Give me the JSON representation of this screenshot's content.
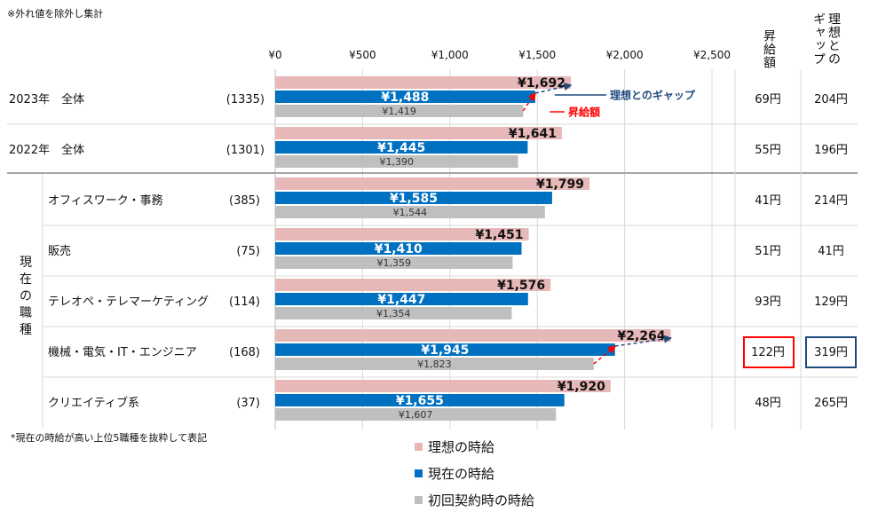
{
  "notes": {
    "top": "※外れ値を除外し集計",
    "bottom": "*現在の時給が高い上位5職種を抜粋して表記"
  },
  "headers": {
    "raise": "昇給額",
    "gap": "理想とのギャップ"
  },
  "group_label": "現在の職種",
  "annotations": {
    "gap": "理想とのギャップ",
    "raise": "昇給額"
  },
  "colors": {
    "ideal": "#e6b8b7",
    "current": "#0070c0",
    "initial": "#bfbfbf",
    "raise_highlight": "#ff0000",
    "gap_highlight": "#1f497d"
  },
  "chart_data": {
    "type": "bar",
    "orientation": "horizontal",
    "xlim": [
      0,
      2500
    ],
    "x_ticks": [
      "¥0",
      "¥500",
      "¥1,000",
      "¥1,500",
      "¥2,000",
      "¥2,500"
    ],
    "grid": true,
    "legend_position": "bottom",
    "categories": [
      {
        "label": "2023年　全体",
        "n": "(1335)",
        "raise": "69円",
        "gap": "204円"
      },
      {
        "label": "2022年　全体",
        "n": "(1301)",
        "raise": "55円",
        "gap": "196円"
      },
      {
        "label": "オフィスワーク・事務",
        "n": "(385)",
        "raise": "41円",
        "gap": "214円"
      },
      {
        "label": "販売",
        "n": "(75)",
        "raise": "51円",
        "gap": "41円"
      },
      {
        "label": "テレオペ・テレマーケティング",
        "n": "(114)",
        "raise": "93円",
        "gap": "129円"
      },
      {
        "label": "機械・電気・IT・エンジニア",
        "n": "(168)",
        "raise": "122円",
        "gap": "319円"
      },
      {
        "label": "クリエイティブ系",
        "n": "(37)",
        "raise": "48円",
        "gap": "265円"
      }
    ],
    "series": [
      {
        "name": "理想の時給",
        "values": [
          1692,
          1641,
          1799,
          1451,
          1576,
          2264,
          1920
        ],
        "labels": [
          "¥1,692",
          "¥1,641",
          "¥1,799",
          "¥1,451",
          "¥1,576",
          "¥2,264",
          "¥1,920"
        ]
      },
      {
        "name": "現在の時給",
        "values": [
          1488,
          1445,
          1585,
          1410,
          1447,
          1945,
          1655
        ],
        "labels": [
          "¥1,488",
          "¥1,445",
          "¥1,585",
          "¥1,410",
          "¥1,447",
          "¥1,945",
          "¥1,655"
        ]
      },
      {
        "name": "初回契約時の時給",
        "values": [
          1419,
          1390,
          1544,
          1359,
          1354,
          1823,
          1607
        ],
        "labels": [
          "¥1,419",
          "¥1,390",
          "¥1,544",
          "¥1,359",
          "¥1,354",
          "¥1,823",
          "¥1,607"
        ]
      }
    ]
  }
}
